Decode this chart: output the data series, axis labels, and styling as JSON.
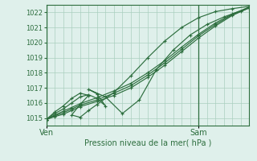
{
  "bg_color": "#dff0eb",
  "grid_color": "#aacfbf",
  "line_color": "#2d6e3e",
  "title": "Pression niveau de la mer( hPa )",
  "xlabel_ven": "Ven",
  "xlabel_sam": "Sam",
  "ylim": [
    1014.5,
    1022.5
  ],
  "yticks": [
    1015,
    1016,
    1017,
    1018,
    1019,
    1020,
    1021,
    1022
  ],
  "xlim": [
    0,
    48
  ],
  "ven_x": 0,
  "sam_x": 36,
  "total_x": 48,
  "series": [
    {
      "x": [
        0,
        2,
        4,
        6,
        8,
        12,
        16,
        20,
        24,
        28,
        32,
        36,
        40,
        44,
        48
      ],
      "y": [
        1014.9,
        1015.1,
        1015.25,
        1015.5,
        1015.75,
        1016.1,
        1016.5,
        1017.0,
        1017.7,
        1018.5,
        1019.4,
        1020.3,
        1021.1,
        1021.8,
        1022.3
      ]
    },
    {
      "x": [
        0,
        2,
        4,
        6,
        8,
        12,
        16,
        20,
        24,
        28,
        32,
        36,
        40,
        44,
        48
      ],
      "y": [
        1014.9,
        1015.15,
        1015.35,
        1015.6,
        1015.85,
        1016.2,
        1016.65,
        1017.15,
        1017.85,
        1018.65,
        1019.55,
        1020.45,
        1021.2,
        1021.85,
        1022.3
      ]
    },
    {
      "x": [
        0,
        2,
        4,
        6,
        8,
        12,
        16,
        20,
        24,
        28,
        32,
        36,
        40,
        44,
        48
      ],
      "y": [
        1014.9,
        1015.2,
        1015.45,
        1015.7,
        1015.95,
        1016.35,
        1016.8,
        1017.3,
        1018.0,
        1018.8,
        1019.7,
        1020.55,
        1021.3,
        1021.9,
        1022.35
      ]
    },
    {
      "x": [
        0,
        2,
        4,
        6,
        8,
        10,
        12,
        14,
        12,
        10,
        14,
        18,
        22,
        26,
        30,
        34,
        38,
        42,
        46,
        48
      ],
      "y": [
        1014.9,
        1015.3,
        1015.6,
        1016.0,
        1016.4,
        1016.55,
        1016.3,
        1015.8,
        1016.6,
        1016.9,
        1016.4,
        1015.3,
        1016.2,
        1018.2,
        1019.5,
        1020.5,
        1021.2,
        1021.7,
        1022.1,
        1022.35
      ]
    },
    {
      "x": [
        0,
        2,
        4,
        6,
        8,
        10,
        8,
        6,
        8,
        10,
        12,
        16,
        20,
        24,
        28,
        32,
        36,
        40,
        44,
        48
      ],
      "y": [
        1014.9,
        1015.4,
        1015.8,
        1016.3,
        1016.65,
        1016.5,
        1015.9,
        1015.2,
        1015.05,
        1015.5,
        1015.9,
        1016.7,
        1017.8,
        1019.0,
        1020.1,
        1021.0,
        1021.65,
        1022.05,
        1022.25,
        1022.4
      ]
    }
  ]
}
